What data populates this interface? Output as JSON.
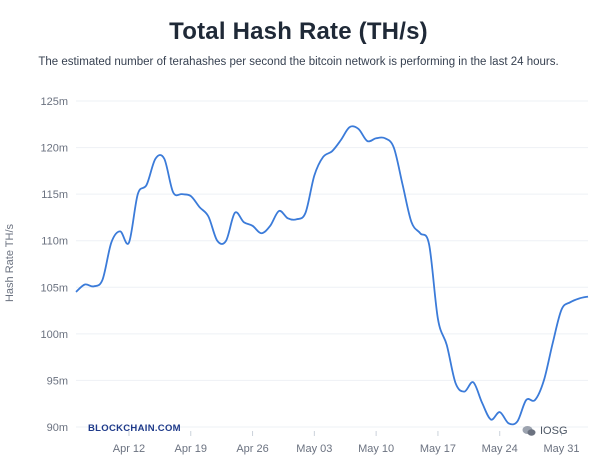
{
  "header": {
    "title": "Total Hash Rate (TH/s)",
    "subtitle": "The estimated number of terahashes per second the bitcoin network is performing in the last 24 hours."
  },
  "brand": "BLOCKCHAIN.COM",
  "watermark": "IOSG",
  "colors": {
    "line": "#3b7bd9",
    "grid": "#eef1f5",
    "text": "#6b7280",
    "title": "#1f2937"
  },
  "chart_data": {
    "type": "line",
    "ylabel": "Hash Rate TH/s",
    "yticks": [
      90,
      95,
      100,
      105,
      110,
      115,
      120,
      125
    ],
    "ytick_labels": [
      "90m",
      "95m",
      "100m",
      "105m",
      "110m",
      "115m",
      "120m",
      "125m"
    ],
    "ylim": [
      90,
      125
    ],
    "xlim": [
      "2021-04-06",
      "2021-06-03"
    ],
    "xticks": [
      "2021-04-12",
      "2021-04-19",
      "2021-04-26",
      "2021-05-03",
      "2021-05-10",
      "2021-05-17",
      "2021-05-24",
      "2021-05-31"
    ],
    "xtick_labels": [
      "Apr 12",
      "Apr 19",
      "Apr 26",
      "May 03",
      "May 10",
      "May 17",
      "May 24",
      "May 31"
    ],
    "grid": true,
    "series": [
      {
        "x": [
          "2021-04-06",
          "2021-04-07",
          "2021-04-08",
          "2021-04-09",
          "2021-04-10",
          "2021-04-11",
          "2021-04-12",
          "2021-04-13",
          "2021-04-14",
          "2021-04-15",
          "2021-04-16",
          "2021-04-17",
          "2021-04-18",
          "2021-04-19",
          "2021-04-20",
          "2021-04-21",
          "2021-04-22",
          "2021-04-23",
          "2021-04-24",
          "2021-04-25",
          "2021-04-26",
          "2021-04-27",
          "2021-04-28",
          "2021-04-29",
          "2021-04-30",
          "2021-05-01",
          "2021-05-02",
          "2021-05-03",
          "2021-05-04",
          "2021-05-05",
          "2021-05-06",
          "2021-05-07",
          "2021-05-08",
          "2021-05-09",
          "2021-05-10",
          "2021-05-11",
          "2021-05-12",
          "2021-05-13",
          "2021-05-14",
          "2021-05-15",
          "2021-05-16",
          "2021-05-17",
          "2021-05-18",
          "2021-05-19",
          "2021-05-20",
          "2021-05-21",
          "2021-05-22",
          "2021-05-23",
          "2021-05-24",
          "2021-05-25",
          "2021-05-26",
          "2021-05-27",
          "2021-05-28",
          "2021-05-29",
          "2021-05-30",
          "2021-05-31",
          "2021-06-01",
          "2021-06-02",
          "2021-06-03"
        ],
        "values": [
          104.5,
          105.3,
          105.1,
          105.8,
          109.8,
          111.0,
          109.8,
          115.0,
          116.0,
          118.8,
          118.8,
          115.2,
          115.0,
          114.8,
          113.6,
          112.6,
          110.0,
          110.0,
          113.0,
          112.0,
          111.6,
          110.8,
          111.6,
          113.2,
          112.4,
          112.3,
          113.0,
          117.0,
          119.0,
          119.6,
          120.8,
          122.2,
          122.0,
          120.7,
          121.0,
          121.0,
          120.0,
          116.0,
          112.0,
          110.8,
          109.6,
          101.6,
          98.8,
          94.7,
          93.8,
          94.8,
          92.6,
          90.8,
          91.6,
          90.4,
          90.6,
          92.9,
          92.9,
          95.0,
          99.0,
          102.6,
          103.4,
          103.8,
          104.0
        ]
      }
    ]
  }
}
